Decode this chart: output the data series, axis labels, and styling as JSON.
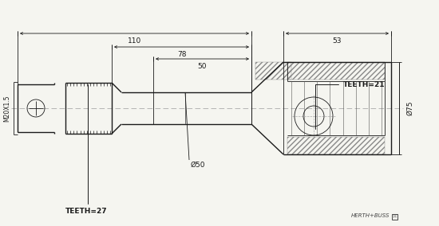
{
  "bg_color": "#f5f5f0",
  "line_color": "#1a1a1a",
  "dim_color": "#1a1a1a",
  "annotations": {
    "teeth_27": "TEETH=27",
    "teeth_21": "TEETH=21",
    "m20x15": "M20X1.5",
    "d50": "Ø50",
    "d75": "Ø75"
  },
  "dimensions": {
    "dim_50": "50",
    "dim_78": "78",
    "dim_110": "110",
    "dim_53": "53"
  },
  "brand": "HERTH+BUSS"
}
